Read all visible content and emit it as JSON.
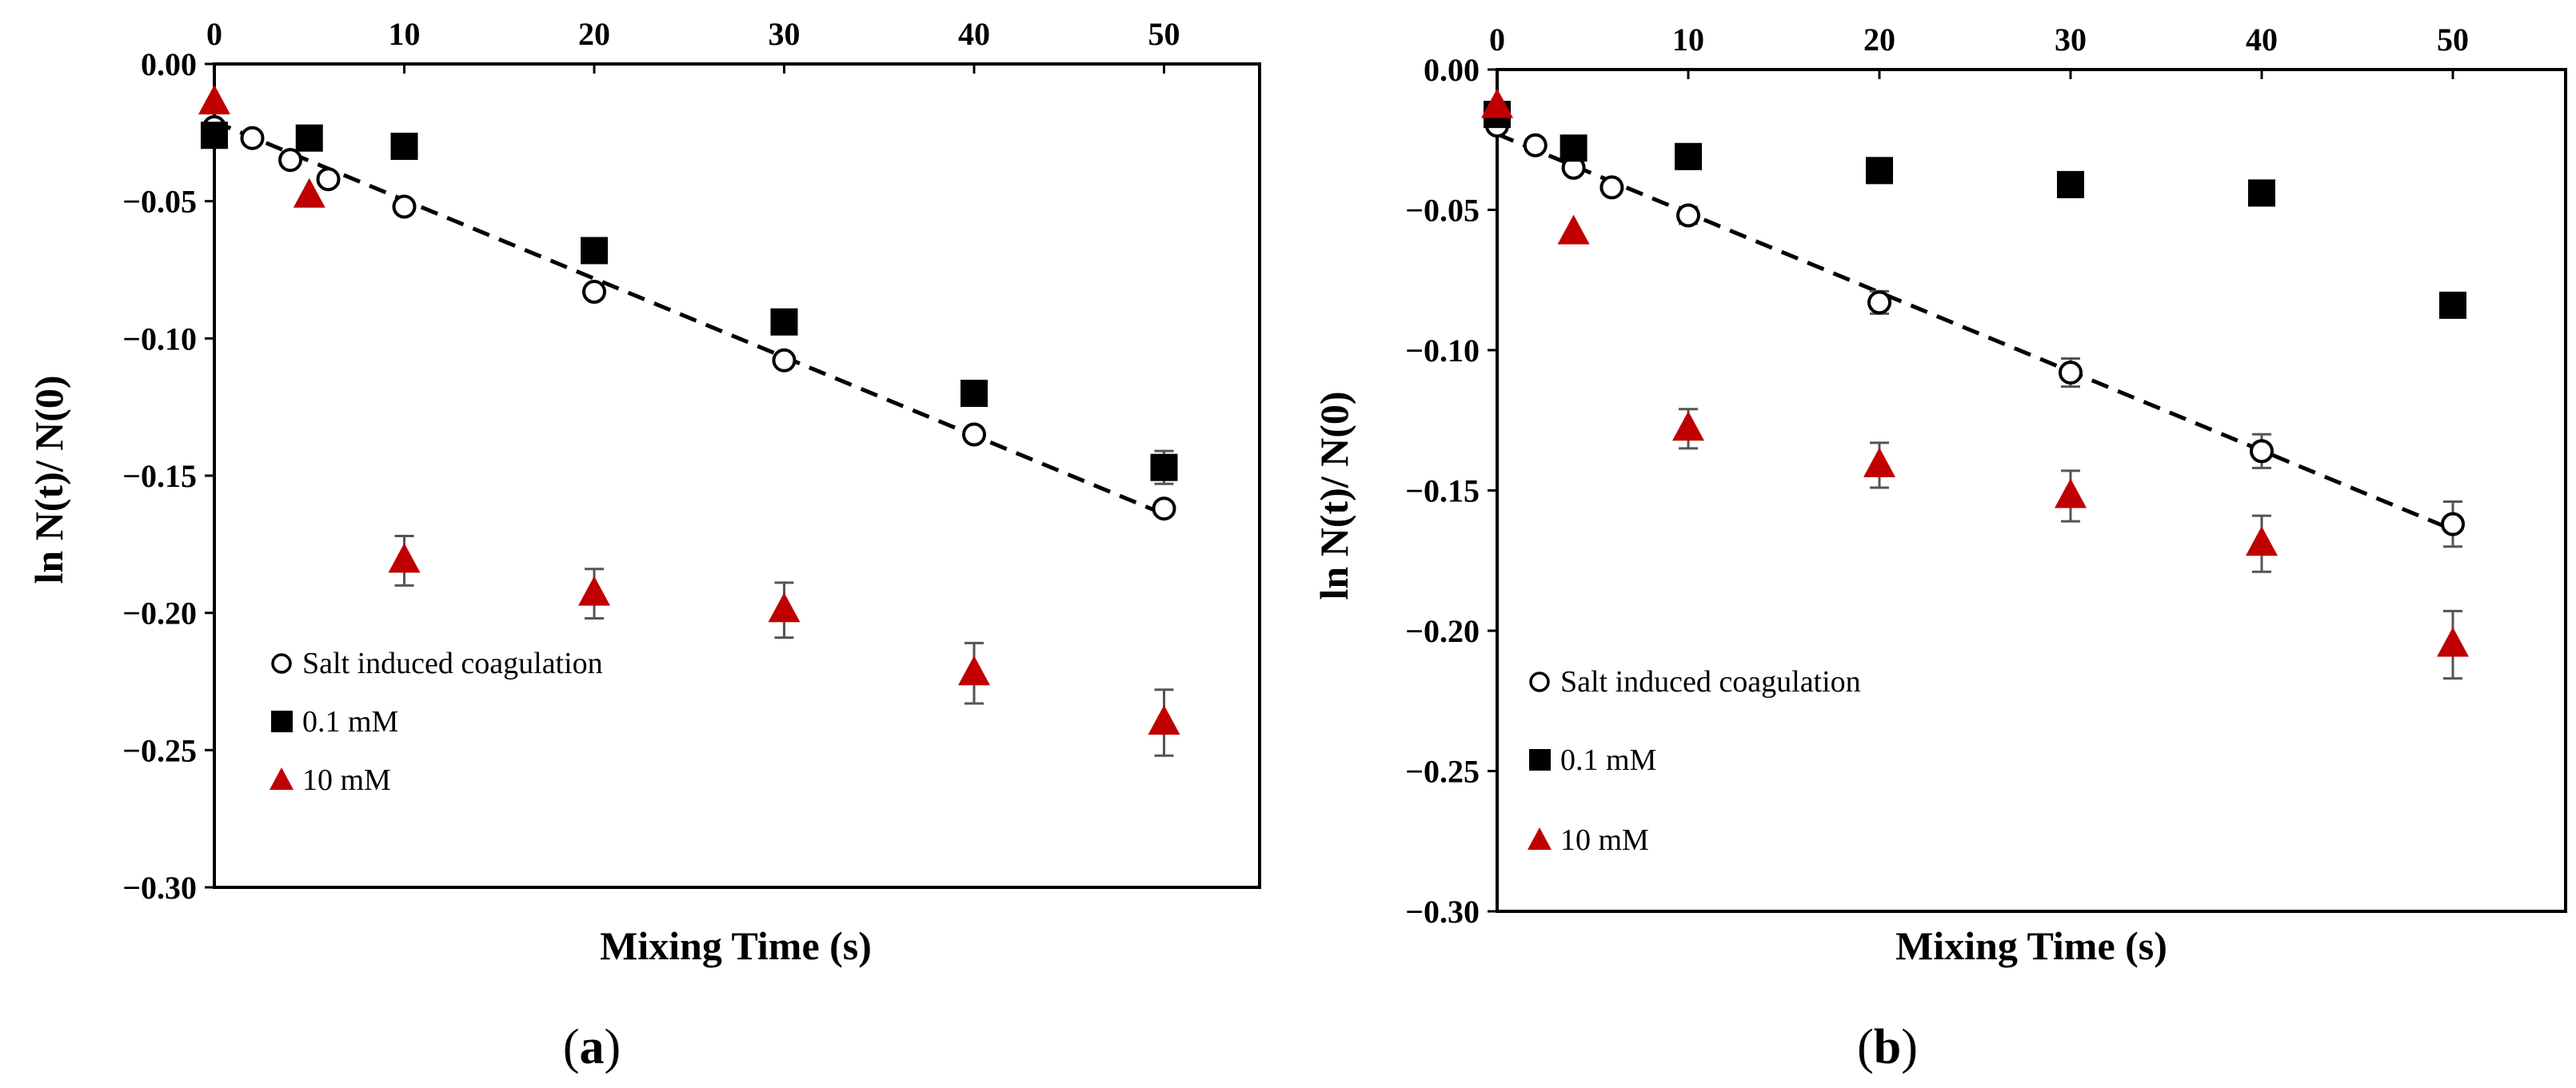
{
  "chart_data": [
    {
      "type": "scatter",
      "panel": "a",
      "xlabel": "Mixing Time (s)",
      "ylabel": "ln N(t)/ N(0)",
      "xlim": [
        0,
        55
      ],
      "ylim": [
        -0.3,
        0.0
      ],
      "xticks": [
        0,
        10,
        20,
        30,
        40,
        50
      ],
      "xtick_labels": [
        "0",
        "10",
        "20",
        "30",
        "40",
        "50"
      ],
      "xaxis_position": "top",
      "yticks": [
        0.0,
        -0.05,
        -0.1,
        -0.15,
        -0.2,
        -0.25,
        -0.3
      ],
      "ytick_labels": [
        "0.00",
        "−0.05",
        "−0.10",
        "−0.15",
        "−0.20",
        "−0.25",
        "−0.30"
      ],
      "legend_position": "bottom-left",
      "series": [
        {
          "name": "Salt induced coagulation",
          "marker": "open-circle",
          "color": "#000000",
          "x": [
            0,
            2,
            4,
            6,
            10,
            20,
            30,
            40,
            50
          ],
          "y": [
            -0.023,
            -0.027,
            -0.035,
            -0.042,
            -0.052,
            -0.083,
            -0.108,
            -0.135,
            -0.162
          ],
          "err": [
            0,
            0,
            0,
            0,
            0,
            0,
            0,
            0,
            0
          ]
        },
        {
          "name": "0.1 mM",
          "marker": "square",
          "color": "#000000",
          "x": [
            0,
            5,
            10,
            20,
            30,
            40,
            50
          ],
          "y": [
            -0.026,
            -0.027,
            -0.03,
            -0.068,
            -0.094,
            -0.12,
            -0.147
          ],
          "err": [
            0,
            0,
            0,
            0,
            0,
            0.004,
            0.006
          ]
        },
        {
          "name": "10 mM",
          "marker": "triangle",
          "color": "#c00000",
          "x": [
            0,
            5,
            10,
            20,
            30,
            40,
            50
          ],
          "y": [
            -0.014,
            -0.048,
            -0.181,
            -0.193,
            -0.199,
            -0.222,
            -0.24
          ],
          "err": [
            0,
            0,
            0.009,
            0.009,
            0.01,
            0.011,
            0.012
          ]
        }
      ],
      "trendline": {
        "series": "Salt induced coagulation",
        "style": "dashed",
        "x": [
          0,
          50
        ],
        "y": [
          -0.021,
          -0.164
        ]
      }
    },
    {
      "type": "scatter",
      "panel": "b",
      "xlabel": "Mixing Time (s)",
      "ylabel": "ln N(t)/ N(0)",
      "xlim": [
        0,
        55
      ],
      "ylim": [
        -0.3,
        0.0
      ],
      "xticks": [
        0,
        10,
        20,
        30,
        40,
        50
      ],
      "xtick_labels": [
        "0",
        "10",
        "20",
        "30",
        "40",
        "50"
      ],
      "xaxis_position": "top",
      "yticks": [
        0.0,
        -0.05,
        -0.1,
        -0.15,
        -0.2,
        -0.25,
        -0.3
      ],
      "ytick_labels": [
        "0.00",
        "−0.05",
        "−0.10",
        "−0.15",
        "−0.20",
        "−0.25",
        "−0.30"
      ],
      "legend_position": "bottom-left",
      "series": [
        {
          "name": "Salt induced coagulation",
          "marker": "open-circle",
          "color": "#000000",
          "x": [
            0,
            2,
            4,
            6,
            10,
            20,
            30,
            40,
            50
          ],
          "y": [
            -0.02,
            -0.027,
            -0.035,
            -0.042,
            -0.052,
            -0.083,
            -0.108,
            -0.136,
            -0.162
          ],
          "err": [
            0,
            0,
            0,
            0,
            0.003,
            0.004,
            0.005,
            0.006,
            0.008
          ]
        },
        {
          "name": "0.1 mM",
          "marker": "square",
          "color": "#000000",
          "x": [
            0,
            4,
            10,
            20,
            30,
            40,
            50
          ],
          "y": [
            -0.016,
            -0.028,
            -0.031,
            -0.036,
            -0.041,
            -0.044,
            -0.084
          ],
          "err": [
            0,
            0,
            0,
            0,
            0,
            0,
            0
          ]
        },
        {
          "name": "10 mM",
          "marker": "triangle",
          "color": "#c00000",
          "x": [
            0,
            4,
            10,
            20,
            30,
            40,
            50
          ],
          "y": [
            -0.013,
            -0.058,
            -0.128,
            -0.141,
            -0.152,
            -0.169,
            -0.205
          ],
          "err": [
            0,
            0,
            0.007,
            0.008,
            0.009,
            0.01,
            0.012
          ]
        }
      ],
      "trendline": {
        "series": "Salt induced coagulation",
        "style": "dashed",
        "x": [
          0,
          50
        ],
        "y": [
          -0.023,
          -0.164
        ]
      }
    }
  ],
  "panel_labels": [
    "(a)",
    "(b)"
  ]
}
